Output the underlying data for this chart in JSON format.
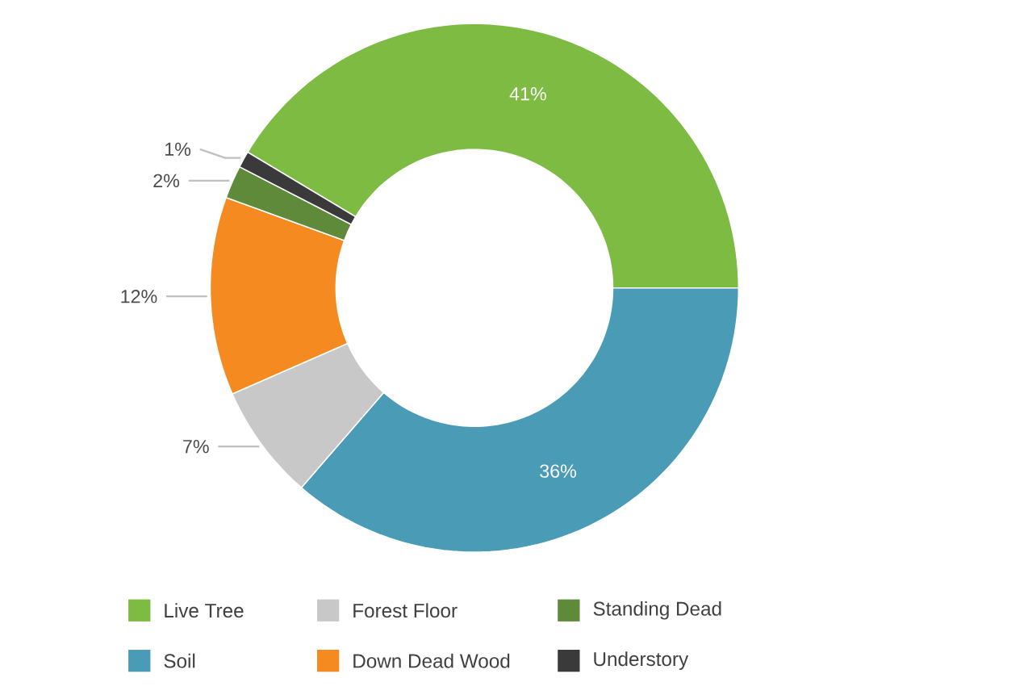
{
  "chart_data": {
    "type": "donut",
    "categories": [
      "Live Tree",
      "Soil",
      "Forest Floor",
      "Down Dead Wood",
      "Standing Dead",
      "Understory"
    ],
    "values": [
      41,
      36,
      7,
      12,
      2,
      1
    ],
    "colors": [
      "#7dbb42",
      "#4a9bb5",
      "#c8c8c8",
      "#f58a20",
      "#5f8a3a",
      "#3a3a3a"
    ],
    "value_labels": [
      "41%",
      "36%",
      "7%",
      "12%",
      "2%",
      "1%"
    ],
    "legend": "bottom"
  }
}
